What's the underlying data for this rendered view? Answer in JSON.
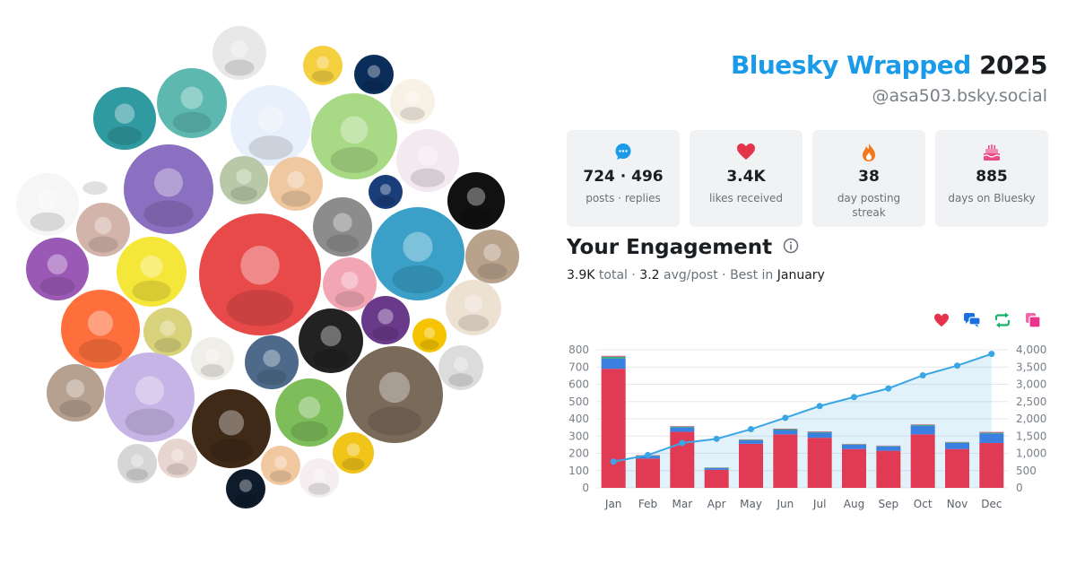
{
  "header": {
    "brand": "Bluesky Wrapped",
    "year": "2025",
    "handle": "@asa503.bsky.social"
  },
  "stats": [
    {
      "icon": "speech-bubble-icon",
      "value": "724 · 496",
      "label": "posts · replies",
      "color": "#1a9bea"
    },
    {
      "icon": "heart-icon",
      "value": "3.4K",
      "label": "likes received",
      "color": "#e5334b"
    },
    {
      "icon": "flame-icon",
      "value": "38",
      "label": "day posting streak",
      "color": "#f5781f"
    },
    {
      "icon": "cake-icon",
      "value": "885",
      "label": "days on Bluesky",
      "color": "#e94a88"
    }
  ],
  "engagement": {
    "title": "Your Engagement",
    "total_value": "3.9K",
    "total_label": "total",
    "avg_value": "3.2",
    "avg_label": "avg/post",
    "best_label": "Best in",
    "best_month": "January",
    "legend_icons": [
      {
        "name": "heart-icon",
        "color": "#e5334b"
      },
      {
        "name": "reply-icon",
        "color": "#1a6fe0"
      },
      {
        "name": "repost-icon",
        "color": "#17b26a"
      },
      {
        "name": "quote-icon",
        "color": "#e9348c"
      }
    ]
  },
  "chart_data": {
    "type": "bar",
    "categories": [
      "Jan",
      "Feb",
      "Mar",
      "Apr",
      "May",
      "Jun",
      "Jul",
      "Aug",
      "Sep",
      "Oct",
      "Nov",
      "Dec"
    ],
    "series": [
      {
        "values": [
          690,
          170,
          325,
          105,
          255,
          310,
          290,
          225,
          215,
          310,
          225,
          260
        ],
        "color": "#e03a55"
      },
      {
        "values": [
          60,
          15,
          25,
          10,
          20,
          25,
          30,
          25,
          25,
          50,
          35,
          55
        ],
        "color": "#3b7fe0"
      },
      {
        "values": [
          10,
          3,
          5,
          2,
          4,
          5,
          4,
          3,
          3,
          5,
          4,
          5
        ],
        "color": "#2fb36b"
      },
      {
        "values": [
          5,
          2,
          3,
          1,
          2,
          3,
          3,
          2,
          2,
          3,
          2,
          4
        ],
        "color": "#e94a88"
      }
    ],
    "cumulative": {
      "values": [
        760,
        950,
        1300,
        1420,
        1700,
        2030,
        2370,
        2630,
        2880,
        3260,
        3540,
        3880
      ],
      "color": "#3ba6e6"
    },
    "yticks_left": [
      "0",
      "100",
      "200",
      "300",
      "400",
      "500",
      "600",
      "700",
      "800"
    ],
    "yticks_right": [
      "0",
      "500",
      "1,000",
      "1,500",
      "2,000",
      "2,500",
      "3,000",
      "3,500",
      "4,000"
    ],
    "ylim_left": [
      0,
      800
    ],
    "ylim_right": [
      0,
      4000
    ],
    "grid": true
  }
}
